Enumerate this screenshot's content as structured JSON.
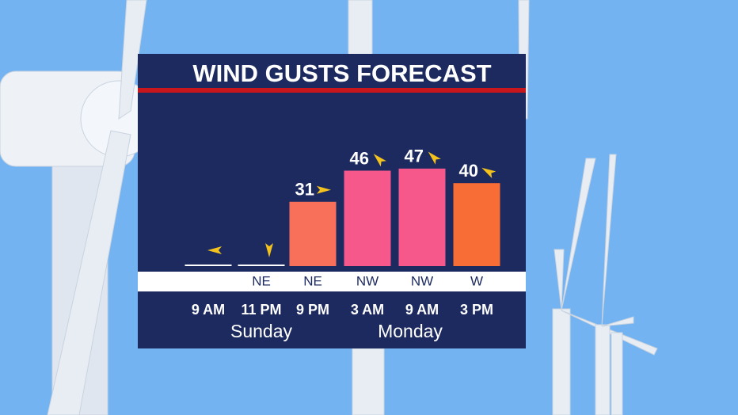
{
  "chart_data": {
    "type": "bar",
    "title": "WIND GUSTS FORECAST",
    "categories": [
      "9 AM",
      "11 PM",
      "9 PM",
      "3 AM",
      "9 AM",
      "3 PM"
    ],
    "days": [
      "Sunday",
      "Monday"
    ],
    "directions": [
      null,
      "NE",
      "NE",
      "NW",
      "NW",
      "W"
    ],
    "values": [
      0,
      0,
      31,
      46,
      47,
      40
    ],
    "value_labels": [
      null,
      null,
      "31",
      "46",
      "47",
      "40"
    ],
    "colors": [
      "#ffffff",
      "#ffffff",
      "#f9705a",
      "#f6588b",
      "#f6588b",
      "#f86c36"
    ],
    "arrow_angles": [
      180,
      90,
      0,
      -135,
      -135,
      -150
    ],
    "ylim": [
      0,
      50
    ]
  }
}
